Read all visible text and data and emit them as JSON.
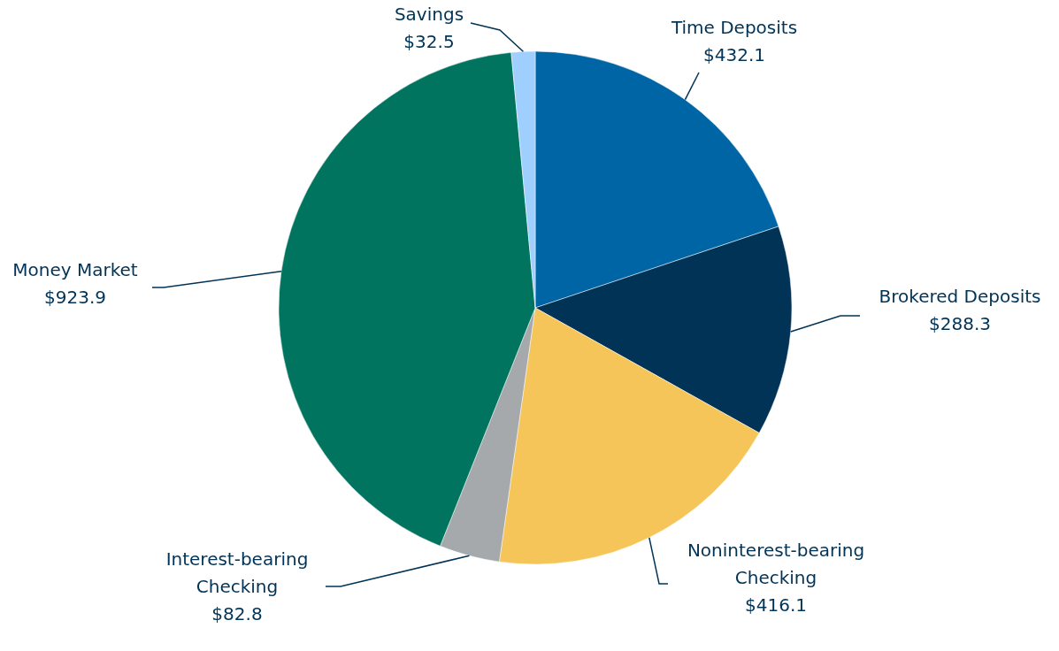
{
  "chart_data": {
    "type": "pie",
    "categories": [
      "Time Deposits",
      "Brokered Deposits",
      "Noninterest-bearing Checking",
      "Interest-bearing Checking",
      "Money Market",
      "Savings"
    ],
    "values": [
      432.1,
      288.3,
      416.1,
      82.8,
      923.9,
      32.5
    ],
    "value_labels": [
      "$432.1",
      "$288.3",
      "$416.1",
      "$82.8",
      "$923.9",
      "$32.5"
    ],
    "colors": [
      "#0065a4",
      "#003356",
      "#f5c55a",
      "#a5a9ab",
      "#00745f",
      "#9fcfff"
    ]
  }
}
